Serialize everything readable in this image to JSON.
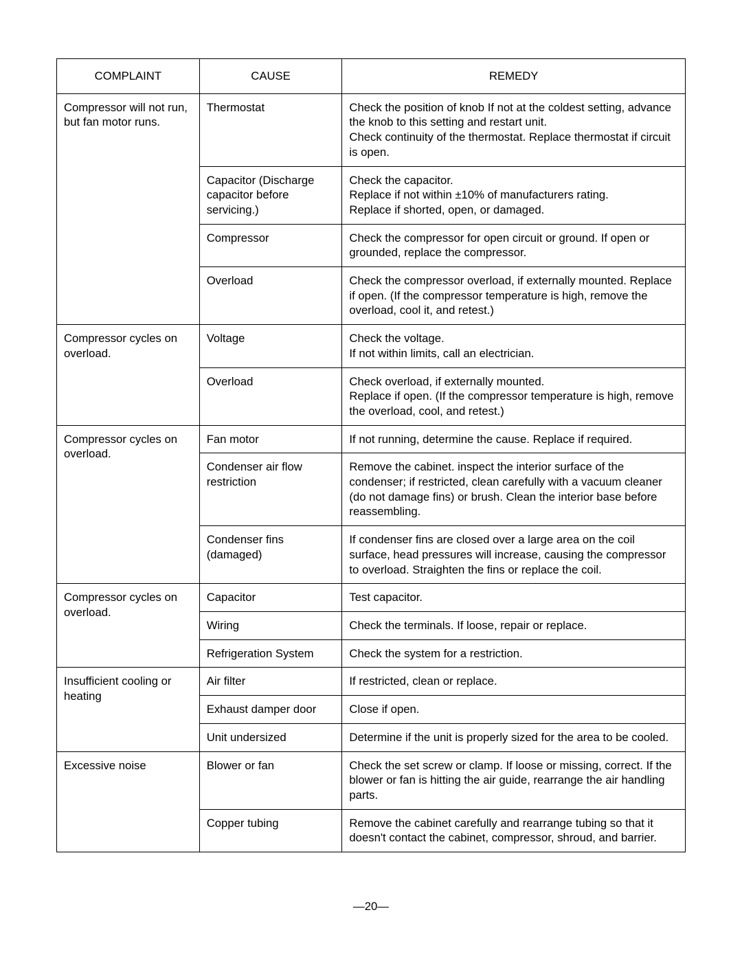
{
  "headers": {
    "complaint": "COMPLAINT",
    "cause": "CAUSE",
    "remedy": "REMEDY"
  },
  "rows": [
    {
      "complaint": "Compressor will not run, but fan motor runs.",
      "complaintRowspan": 4,
      "cause": "Thermostat",
      "remedy": "Check the position of knob If not at the coldest setting, advance the knob to this setting and restart unit.\nCheck continuity of the thermostat. Replace thermostat if circuit is open."
    },
    {
      "cause": "Capacitor (Discharge capacitor before servicing.)",
      "remedy": "Check the capacitor.\nReplace if not within ±10% of manufacturers rating.\nReplace if shorted, open, or damaged."
    },
    {
      "cause": "Compressor",
      "remedy": "Check the compressor for open circuit or ground. If open or grounded, replace the compressor."
    },
    {
      "cause": "Overload",
      "remedy": "Check the compressor overload, if externally mounted. Replace if open. (If the compressor temperature is high, remove the overload, cool it, and retest.)"
    },
    {
      "complaint": "Compressor cycles on overload.",
      "complaintRowspan": 2,
      "cause": "Voltage",
      "remedy": "Check the voltage.\nIf not within limits, call an electrician."
    },
    {
      "cause": "Overload",
      "remedy": "Check overload, if externally mounted.\nReplace if open. (If the compressor temperature is high, remove the overload, cool, and retest.)"
    },
    {
      "complaint": "Compressor cycles on overload.",
      "complaintRowspan": 3,
      "cause": "Fan motor",
      "remedy": "If not running, determine the cause. Replace if required."
    },
    {
      "cause": "Condenser air flow restriction",
      "remedy": "Remove the cabinet. inspect the interior surface of the condenser; if restricted, clean carefully with a vacuum cleaner (do not damage fins) or brush. Clean the interior base before reassembling."
    },
    {
      "cause": "Condenser fins (damaged)",
      "remedy": "If condenser fins are closed over a large area on the coil surface, head pressures will increase, causing the compressor to overload. Straighten the fins or replace the coil."
    },
    {
      "complaint": "Compressor cycles on overload.",
      "complaintRowspan": 3,
      "cause": "Capacitor",
      "remedy": "Test capacitor."
    },
    {
      "cause": "Wiring",
      "remedy": "Check the terminals. If loose, repair or replace."
    },
    {
      "cause": "Refrigeration System",
      "remedy": "Check the system for a restriction."
    },
    {
      "complaint": "Insufficient cooling or heating",
      "complaintRowspan": 3,
      "cause": "Air filter",
      "remedy": "If restricted, clean or replace."
    },
    {
      "cause": "Exhaust damper door",
      "remedy": "Close if open."
    },
    {
      "cause": "Unit undersized",
      "remedy": "Determine if the unit is properly sized for the area to be cooled."
    },
    {
      "complaint": "Excessive noise",
      "complaintRowspan": 2,
      "cause": "Blower or fan",
      "remedy": "Check the set screw or clamp. If loose or missing, correct. If the blower or fan is hitting the air guide, rearrange the air handling parts."
    },
    {
      "cause": "Copper tubing",
      "remedy": "Remove the cabinet carefully and rearrange tubing so that  it doesn't contact the cabinet, compressor, shroud, and barrier."
    }
  ],
  "pageNumber": "—20—"
}
